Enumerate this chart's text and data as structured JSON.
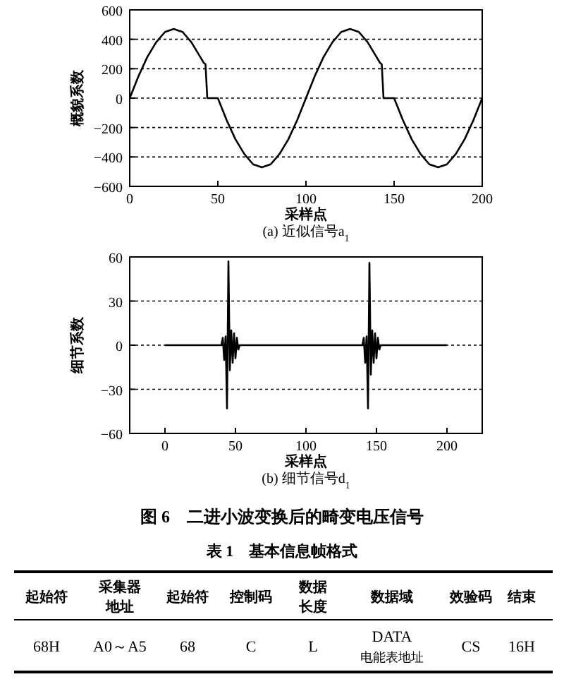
{
  "chart_data": [
    {
      "type": "line",
      "xlabel": "采样点",
      "ylabel": "概貌系数",
      "annotations": [
        "(a) 近似信号a$_{1}$"
      ],
      "xlim": [
        0,
        200
      ],
      "ylim": [
        -600,
        600
      ],
      "xticks": [
        0,
        50,
        100,
        150,
        200
      ],
      "yticks": [
        -600,
        -400,
        -200,
        0,
        200,
        400,
        600
      ],
      "grid": "y",
      "line_style": "solid",
      "marker": "none",
      "series": [
        {
          "color": "#000000",
          "x": [
            0,
            5,
            10,
            15,
            20,
            25,
            30,
            35,
            40,
            42,
            43,
            44,
            50,
            55,
            60,
            65,
            70,
            75,
            80,
            85,
            90,
            95,
            100,
            105,
            110,
            115,
            120,
            125,
            130,
            135,
            140,
            142,
            143,
            144,
            150,
            155,
            160,
            165,
            170,
            175,
            180,
            185,
            190,
            195,
            200
          ],
          "values": [
            0,
            150,
            280,
            380,
            450,
            470,
            450,
            380,
            280,
            240,
            230,
            0,
            0,
            -150,
            -280,
            -380,
            -450,
            -470,
            -450,
            -380,
            -280,
            -150,
            0,
            150,
            280,
            380,
            450,
            470,
            450,
            380,
            280,
            240,
            230,
            0,
            0,
            -150,
            -280,
            -380,
            -450,
            -470,
            -450,
            -380,
            -280,
            -150,
            0
          ]
        }
      ]
    },
    {
      "type": "line",
      "xlabel": "采样点",
      "ylabel": "细节系数",
      "annotations": [
        "(b) 细节信号d$_{1}$",
        "图 6　二进小波变换后的畸变电压信号"
      ],
      "xlim": [
        -25,
        225
      ],
      "ylim": [
        -60,
        60
      ],
      "xticks": [
        0,
        50,
        100,
        150,
        200
      ],
      "yticks": [
        -60,
        -30,
        0,
        30,
        60
      ],
      "grid": "y",
      "line_style": "solid",
      "marker": "none",
      "series": [
        {
          "color": "#000000",
          "x": [
            0,
            40,
            41,
            42,
            43,
            44,
            45,
            46,
            47,
            48,
            49,
            50,
            51,
            52,
            53,
            140,
            141,
            142,
            143,
            144,
            145,
            146,
            147,
            148,
            149,
            150,
            151,
            152,
            153,
            200
          ],
          "values": [
            0,
            0,
            5,
            -10,
            6,
            -43,
            57,
            -17,
            10,
            -12,
            8,
            -9,
            5,
            -3,
            0,
            0,
            5,
            -12,
            6,
            -43,
            56,
            -20,
            10,
            -12,
            8,
            -9,
            5,
            -3,
            0,
            0
          ]
        }
      ]
    },
    {
      "type": "other",
      "title": "表 1　基本信息帧格式",
      "annotations": [
        "起始符",
        "采集器地址",
        "起始符",
        "控制码",
        "数据长度",
        "数据域",
        "效验码",
        "结束",
        "68H",
        "A0～A5",
        "68",
        "C",
        "L",
        "DATA\n电能表地址",
        "CS",
        "16H"
      ]
    }
  ]
}
